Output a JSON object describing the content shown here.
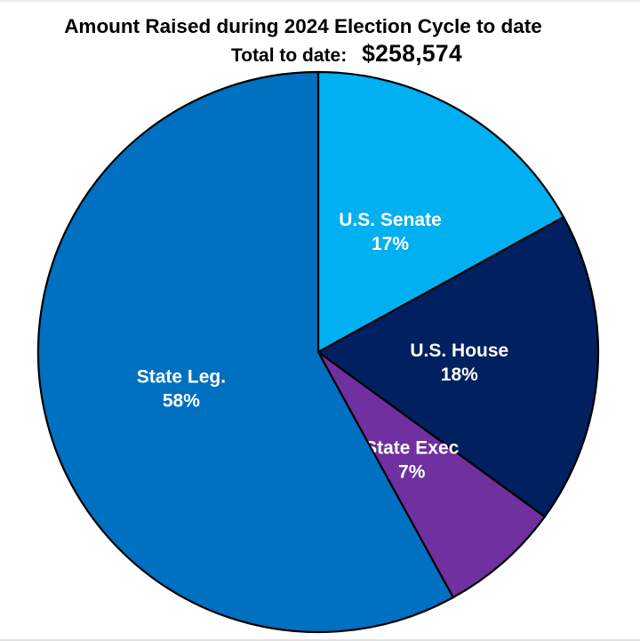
{
  "page": {
    "background_color": "#FFFFFF",
    "hairline_color": "#ECECEC"
  },
  "header": {
    "title": "Amount Raised during 2024 Election Cycle to date",
    "total_label": "Total to date:",
    "total_value": "$258,574"
  },
  "chart_data": {
    "type": "pie",
    "title": "Amount Raised during 2024 Election Cycle to date",
    "subtitle_label": "Total to date:",
    "subtitle_value": "$258,574",
    "start_angle_deg": 0,
    "direction": "clockwise",
    "categories": [
      "U.S. Senate",
      "U.S. House",
      "State Exec",
      "State Leg."
    ],
    "values": [
      17,
      18,
      7,
      58
    ],
    "value_labels": [
      "17%",
      "18%",
      "7%",
      "58%"
    ],
    "colors": [
      "#00B0F0",
      "#002060",
      "#7030A0",
      "#0070C0"
    ],
    "slice_label_color": "#FFFFFF",
    "slice_stroke_color": "#000000",
    "legend": "none",
    "labels_position": "inside-slices"
  }
}
